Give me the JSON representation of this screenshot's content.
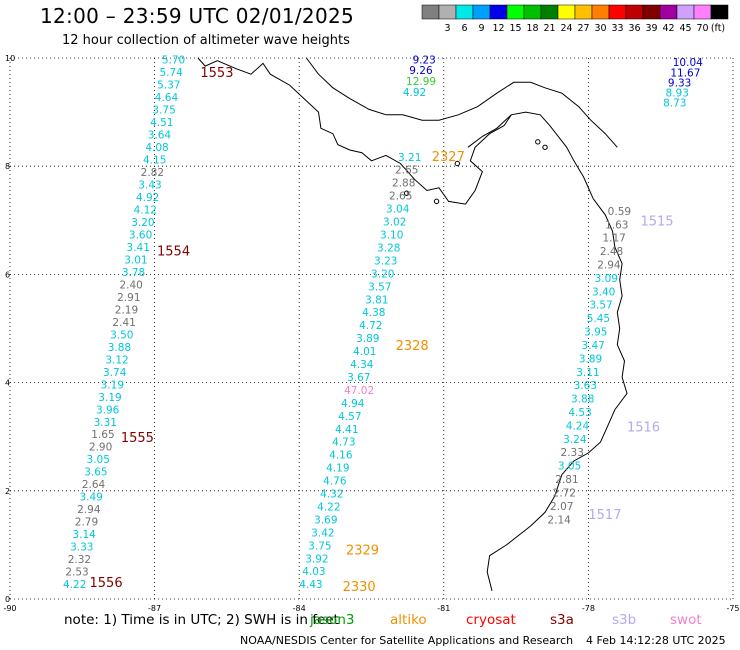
{
  "header": {
    "title": "12:00 – 23:59 UTC 02/01/2025",
    "subtitle": "12 hour collection of altimeter wave heights"
  },
  "colorbar": {
    "unit_label": "(ft)",
    "bins": [
      {
        "label": "",
        "color": "#808080"
      },
      {
        "label": "3",
        "color": "#b0b0b0"
      },
      {
        "label": "6",
        "color": "#00e8e8"
      },
      {
        "label": "9",
        "color": "#00a0ff"
      },
      {
        "label": "12",
        "color": "#0000e8"
      },
      {
        "label": "15",
        "color": "#00ff00"
      },
      {
        "label": "18",
        "color": "#00c000"
      },
      {
        "label": "21",
        "color": "#008000"
      },
      {
        "label": "24",
        "color": "#ffff00"
      },
      {
        "label": "27",
        "color": "#ffc000"
      },
      {
        "label": "30",
        "color": "#ff8000"
      },
      {
        "label": "33",
        "color": "#ff0000"
      },
      {
        "label": "36",
        "color": "#c00000"
      },
      {
        "label": "39",
        "color": "#800000"
      },
      {
        "label": "42",
        "color": "#a000a0"
      },
      {
        "label": "45",
        "color": "#d0a0ff"
      },
      {
        "label": "70",
        "color": "#ff80ff"
      },
      {
        "label": "",
        "color": "#000000"
      }
    ]
  },
  "axes": {
    "x_ticks": [
      "-90",
      "-87",
      "-84",
      "-81",
      "-78",
      "-75"
    ],
    "y_ticks": [
      "0",
      "2",
      "4",
      "6",
      "8",
      "10"
    ],
    "x_range": [
      -90,
      -75
    ],
    "y_range": [
      0,
      10
    ]
  },
  "colors": {
    "gray": "#707070",
    "cyan": "#00c8d8",
    "blue": "#0000d0",
    "green": "#30d030",
    "maroon": "#800000",
    "orange": "#f09000",
    "lavender": "#b8a8f0",
    "pink": "#f080d0",
    "red": "#ff0000"
  },
  "passes": [
    {
      "label": "1553",
      "color": "maroon"
    },
    {
      "label": "1554",
      "color": "maroon"
    },
    {
      "label": "1555",
      "color": "maroon"
    },
    {
      "label": "1556",
      "color": "maroon"
    },
    {
      "label": "2327",
      "color": "orange"
    },
    {
      "label": "2328",
      "color": "orange"
    },
    {
      "label": "2329",
      "color": "orange"
    },
    {
      "label": "2330",
      "color": "orange"
    },
    {
      "label": "1515",
      "color": "lavender"
    },
    {
      "label": "1516",
      "color": "lavender"
    },
    {
      "label": "1517",
      "color": "lavender"
    }
  ],
  "wave_heights": {
    "track_1": [
      {
        "v": "5.70",
        "c": "cyan"
      },
      {
        "v": "5.74",
        "c": "cyan"
      },
      {
        "v": "5.37",
        "c": "cyan"
      },
      {
        "v": "4.64",
        "c": "cyan"
      },
      {
        "v": "3.75",
        "c": "cyan"
      },
      {
        "v": "4.51",
        "c": "cyan"
      },
      {
        "v": "3.64",
        "c": "cyan"
      },
      {
        "v": "4.08",
        "c": "cyan"
      },
      {
        "v": "4.15",
        "c": "cyan"
      },
      {
        "v": "2.82",
        "c": "gray"
      },
      {
        "v": "3.43",
        "c": "cyan"
      },
      {
        "v": "4.92",
        "c": "cyan"
      },
      {
        "v": "4.12",
        "c": "cyan"
      },
      {
        "v": "3.20",
        "c": "cyan"
      },
      {
        "v": "3.60",
        "c": "cyan"
      },
      {
        "v": "3.41",
        "c": "cyan"
      },
      {
        "v": "3.01",
        "c": "cyan"
      },
      {
        "v": "3.78",
        "c": "cyan"
      },
      {
        "v": "2.40",
        "c": "gray"
      },
      {
        "v": "2.91",
        "c": "gray"
      },
      {
        "v": "2.19",
        "c": "gray"
      },
      {
        "v": "2.41",
        "c": "gray"
      },
      {
        "v": "3.50",
        "c": "cyan"
      },
      {
        "v": "3.88",
        "c": "cyan"
      },
      {
        "v": "3.12",
        "c": "cyan"
      },
      {
        "v": "3.74",
        "c": "cyan"
      },
      {
        "v": "3.19",
        "c": "cyan"
      },
      {
        "v": "3.19",
        "c": "cyan"
      },
      {
        "v": "3.96",
        "c": "cyan"
      },
      {
        "v": "3.31",
        "c": "cyan"
      },
      {
        "v": "1.65",
        "c": "gray"
      },
      {
        "v": "2.90",
        "c": "gray"
      },
      {
        "v": "3.05",
        "c": "cyan"
      },
      {
        "v": "3.65",
        "c": "cyan"
      },
      {
        "v": "2.64",
        "c": "gray"
      },
      {
        "v": "3.49",
        "c": "cyan"
      },
      {
        "v": "2.94",
        "c": "gray"
      },
      {
        "v": "2.79",
        "c": "gray"
      },
      {
        "v": "3.14",
        "c": "cyan"
      },
      {
        "v": "3.33",
        "c": "cyan"
      },
      {
        "v": "2.32",
        "c": "gray"
      },
      {
        "v": "2.53",
        "c": "gray"
      },
      {
        "v": "4.22",
        "c": "cyan"
      }
    ],
    "track_2": [
      {
        "v": "3.21",
        "c": "cyan"
      },
      {
        "v": "2.65",
        "c": "gray"
      },
      {
        "v": "2.88",
        "c": "gray"
      },
      {
        "v": "2.65",
        "c": "gray"
      },
      {
        "v": "3.04",
        "c": "cyan"
      },
      {
        "v": "3.02",
        "c": "cyan"
      },
      {
        "v": "3.10",
        "c": "cyan"
      },
      {
        "v": "3.28",
        "c": "cyan"
      },
      {
        "v": "3.23",
        "c": "cyan"
      },
      {
        "v": "3.20",
        "c": "cyan"
      },
      {
        "v": "3.57",
        "c": "cyan"
      },
      {
        "v": "3.81",
        "c": "cyan"
      },
      {
        "v": "4.38",
        "c": "cyan"
      },
      {
        "v": "4.72",
        "c": "cyan"
      },
      {
        "v": "3.89",
        "c": "cyan"
      },
      {
        "v": "4.01",
        "c": "cyan"
      },
      {
        "v": "4.34",
        "c": "cyan"
      },
      {
        "v": "3.67",
        "c": "cyan"
      },
      {
        "v": "47.02",
        "c": "pink"
      },
      {
        "v": "4.94",
        "c": "cyan"
      },
      {
        "v": "4.57",
        "c": "cyan"
      },
      {
        "v": "4.41",
        "c": "cyan"
      },
      {
        "v": "4.73",
        "c": "cyan"
      },
      {
        "v": "4.16",
        "c": "cyan"
      },
      {
        "v": "4.19",
        "c": "cyan"
      },
      {
        "v": "4.76",
        "c": "cyan"
      },
      {
        "v": "4.32",
        "c": "cyan"
      },
      {
        "v": "4.22",
        "c": "cyan"
      },
      {
        "v": "3.69",
        "c": "cyan"
      },
      {
        "v": "3.42",
        "c": "cyan"
      },
      {
        "v": "3.75",
        "c": "cyan"
      },
      {
        "v": "3.92",
        "c": "cyan"
      },
      {
        "v": "4.03",
        "c": "cyan"
      },
      {
        "v": "4.43",
        "c": "cyan"
      }
    ],
    "track_3": [
      {
        "v": "0.59",
        "c": "gray"
      },
      {
        "v": "1.63",
        "c": "gray"
      },
      {
        "v": "1.17",
        "c": "gray"
      },
      {
        "v": "2.48",
        "c": "gray"
      },
      {
        "v": "2.94",
        "c": "gray"
      },
      {
        "v": "3.09",
        "c": "cyan"
      },
      {
        "v": "3.40",
        "c": "cyan"
      },
      {
        "v": "3.57",
        "c": "cyan"
      },
      {
        "v": "5.45",
        "c": "cyan"
      },
      {
        "v": "3.95",
        "c": "cyan"
      },
      {
        "v": "3.47",
        "c": "cyan"
      },
      {
        "v": "3.89",
        "c": "cyan"
      },
      {
        "v": "3.11",
        "c": "cyan"
      },
      {
        "v": "3.63",
        "c": "cyan"
      },
      {
        "v": "3.88",
        "c": "cyan"
      },
      {
        "v": "4.53",
        "c": "cyan"
      },
      {
        "v": "4.24",
        "c": "cyan"
      },
      {
        "v": "3.24",
        "c": "cyan"
      },
      {
        "v": "2.33",
        "c": "gray"
      },
      {
        "v": "3.05",
        "c": "cyan"
      },
      {
        "v": "2.81",
        "c": "gray"
      },
      {
        "v": "2.72",
        "c": "gray"
      },
      {
        "v": "2.07",
        "c": "gray"
      },
      {
        "v": "2.14",
        "c": "gray"
      }
    ],
    "ne_cluster": [
      {
        "v": "9.23",
        "c": "blue"
      },
      {
        "v": "9.26",
        "c": "blue"
      },
      {
        "v": "12.99",
        "c": "green"
      },
      {
        "v": "4.92",
        "c": "cyan"
      }
    ],
    "e_cluster": [
      {
        "v": "10.04",
        "c": "blue"
      },
      {
        "v": "11.67",
        "c": "blue"
      },
      {
        "v": "9.33",
        "c": "blue"
      },
      {
        "v": "8.93",
        "c": "cyan"
      },
      {
        "v": "8.73",
        "c": "cyan"
      }
    ]
  },
  "note": {
    "text": "note:  1) Time is in UTC; 2) SWH is in feet",
    "missions": [
      {
        "label": "jason3",
        "color": "#00a000"
      },
      {
        "label": "altiko",
        "color": "#f09000"
      },
      {
        "label": "cryosat",
        "color": "#ff0000"
      },
      {
        "label": "s3a",
        "color": "#800000"
      },
      {
        "label": "s3b",
        "color": "#b8a8f0"
      },
      {
        "label": "swot",
        "color": "#f080d0"
      }
    ]
  },
  "footer": {
    "credit": "NOAA/NESDIS Center for Satellite Applications and Research",
    "timestamp": "4 Feb 14:12:28 UTC 2025"
  }
}
